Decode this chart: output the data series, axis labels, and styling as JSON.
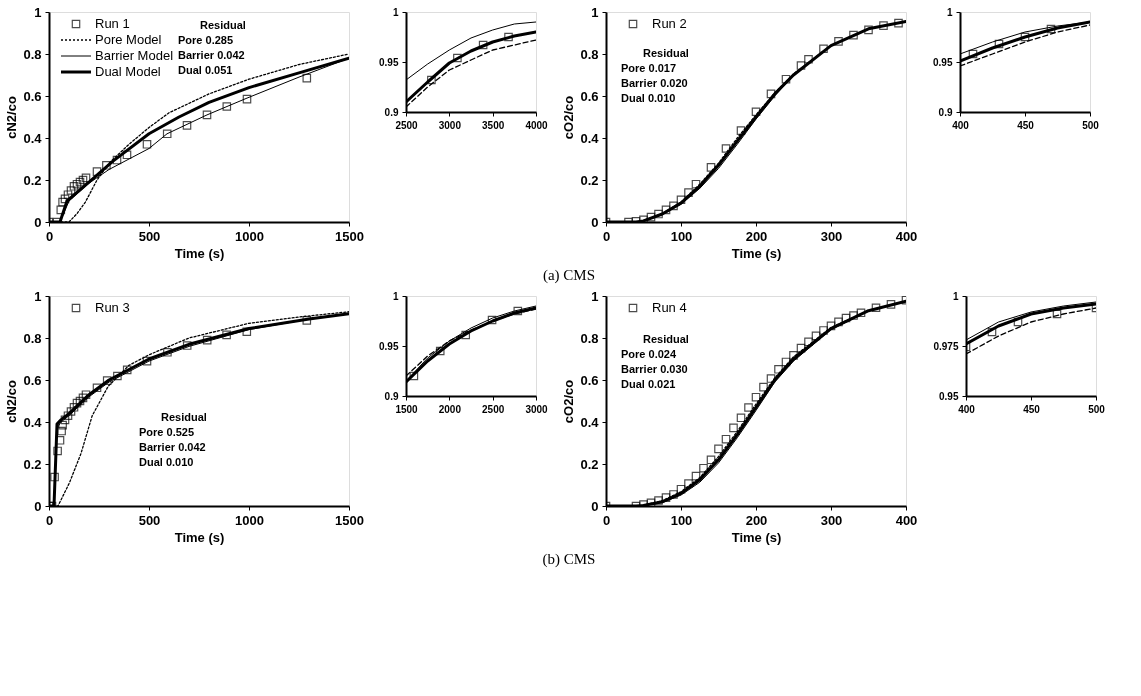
{
  "chart_data": [
    {
      "type": "line",
      "xlabel": "Time (s)",
      "ylabel": "cN2/co",
      "xlim": [
        0,
        1500
      ],
      "ylim": [
        0,
        1
      ],
      "xticks": [
        0,
        500,
        1000,
        1500
      ],
      "yticks": [
        0,
        0.2,
        0.4,
        0.6,
        0.8,
        1
      ],
      "legend": "top left",
      "grid": false,
      "annotations": [
        "Residual",
        "Pore 0.285",
        "Barrier 0.042",
        "Dual 0.051"
      ],
      "series": [
        {
          "name": "Run 1",
          "type": "scatter",
          "marker": "square",
          "color": "#000000",
          "x": [
            0,
            40,
            59,
            68,
            80,
            95,
            110,
            125,
            140,
            155,
            170,
            185,
            240,
            287,
            340,
            390,
            490,
            591,
            690,
            790,
            889,
            990,
            1289
          ],
          "values": [
            0,
            0,
            0.058,
            0.095,
            0.11,
            0.13,
            0.15,
            0.17,
            0.18,
            0.19,
            0.2,
            0.21,
            0.24,
            0.27,
            0.295,
            0.32,
            0.37,
            0.42,
            0.46,
            0.51,
            0.55,
            0.585,
            0.685
          ]
        },
        {
          "name": "Pore Model",
          "type": "line",
          "line_style": "dotted",
          "color": "#000000",
          "x": [
            0,
            100,
            140,
            182,
            240,
            300,
            400,
            500,
            600,
            800,
            1000,
            1250,
            1500
          ],
          "values": [
            0,
            0,
            0.04,
            0.095,
            0.2,
            0.28,
            0.37,
            0.45,
            0.52,
            0.61,
            0.68,
            0.75,
            0.8
          ]
        },
        {
          "name": "Barrier Model",
          "type": "line",
          "line_style": "solid",
          "color": "#000000",
          "x": [
            0,
            55,
            100,
            200,
            300,
            400,
            500,
            590,
            790,
            990,
            1250,
            1500
          ],
          "values": [
            0,
            0,
            0.1,
            0.185,
            0.25,
            0.3,
            0.35,
            0.42,
            0.51,
            0.59,
            0.69,
            0.78
          ]
        },
        {
          "name": "Dual Model",
          "type": "line",
          "line_style": "solid",
          "color": "#000000",
          "x": [
            0,
            55,
            90,
            200,
            320,
            500,
            650,
            800,
            1000,
            1250,
            1500
          ],
          "values": [
            0,
            0,
            0.1,
            0.19,
            0.29,
            0.42,
            0.5,
            0.57,
            0.64,
            0.71,
            0.78
          ]
        }
      ]
    },
    {
      "type": "line",
      "xlim": [
        2500,
        4000
      ],
      "ylim": [
        0.9,
        1
      ],
      "xticks": [
        2500,
        3000,
        3500,
        4000
      ],
      "yticks": [
        0.9,
        0.95,
        1
      ],
      "grid": false,
      "series": [
        {
          "type": "scatter",
          "marker": "square",
          "color": "#000000",
          "x": [
            2793,
            3093,
            3390,
            3683
          ],
          "values": [
            0.932,
            0.954,
            0.967,
            0.975
          ]
        },
        {
          "type": "line",
          "line_style": "dashed",
          "color": "#000000",
          "x": [
            2500,
            2750,
            3000,
            3250,
            3500,
            3750,
            4000
          ],
          "values": [
            0.905,
            0.925,
            0.942,
            0.952,
            0.962,
            0.967,
            0.972
          ]
        },
        {
          "type": "line",
          "line_style": "solid",
          "color": "#000000",
          "x": [
            2500,
            2750,
            3000,
            3250,
            3500,
            3750,
            4000
          ],
          "values": [
            0.932,
            0.948,
            0.962,
            0.974,
            0.982,
            0.988,
            0.99
          ]
        },
        {
          "type": "line",
          "line_style": "solid",
          "color": "#000000",
          "x": [
            2500,
            2750,
            3000,
            3250,
            3500,
            3750,
            4000
          ],
          "values": [
            0.91,
            0.93,
            0.949,
            0.961,
            0.97,
            0.976,
            0.98
          ]
        }
      ]
    },
    {
      "type": "line",
      "xlabel": "Time (s)",
      "ylabel": "cO2/co",
      "xlim": [
        0,
        400
      ],
      "ylim": [
        0,
        1
      ],
      "xticks": [
        0,
        100,
        200,
        300,
        400
      ],
      "yticks": [
        0,
        0.2,
        0.4,
        0.6,
        0.8,
        1
      ],
      "legend": "top left",
      "grid": false,
      "annotations": [
        "Residual",
        "Pore 0.017",
        "Barrier 0.020",
        "Dual 0.010"
      ],
      "series": [
        {
          "name": "Run 2",
          "type": "scatter",
          "marker": "square",
          "color": "#000000",
          "x": [
            0,
            30,
            40,
            50,
            60,
            70,
            80,
            90,
            100,
            110,
            120,
            140,
            160,
            180,
            200,
            220,
            240,
            260,
            270,
            290,
            310,
            330,
            350,
            370,
            390
          ],
          "values": [
            0,
            0,
            0.003,
            0.01,
            0.023,
            0.038,
            0.058,
            0.077,
            0.106,
            0.14,
            0.18,
            0.26,
            0.35,
            0.435,
            0.525,
            0.61,
            0.68,
            0.745,
            0.775,
            0.825,
            0.86,
            0.89,
            0.915,
            0.935,
            0.947
          ]
        },
        {
          "type": "line",
          "line_style": "dotted",
          "color": "#000000",
          "x": [
            0,
            40,
            50,
            75,
            100,
            125,
            150,
            175,
            200,
            225,
            250,
            300,
            350,
            400
          ],
          "values": [
            0,
            0,
            0.006,
            0.04,
            0.095,
            0.18,
            0.28,
            0.4,
            0.51,
            0.615,
            0.705,
            0.84,
            0.92,
            0.955
          ]
        },
        {
          "type": "line",
          "line_style": "solid",
          "color": "#000000",
          "x": [
            0,
            40,
            50,
            75,
            100,
            125,
            150,
            175,
            200,
            225,
            250,
            300,
            350,
            400
          ],
          "values": [
            0,
            0,
            0.004,
            0.035,
            0.085,
            0.16,
            0.255,
            0.37,
            0.49,
            0.6,
            0.7,
            0.84,
            0.92,
            0.955
          ]
        },
        {
          "type": "line",
          "line_style": "solid",
          "color": "#000000",
          "x": [
            0,
            40,
            50,
            75,
            100,
            125,
            150,
            175,
            200,
            225,
            250,
            300,
            350,
            400
          ],
          "values": [
            0,
            0,
            0.005,
            0.038,
            0.09,
            0.17,
            0.27,
            0.385,
            0.5,
            0.61,
            0.7,
            0.84,
            0.92,
            0.955
          ]
        }
      ]
    },
    {
      "type": "line",
      "xlim": [
        400,
        500
      ],
      "ylim": [
        0.9,
        1
      ],
      "xticks": [
        400,
        450,
        500
      ],
      "yticks": [
        0.9,
        0.95,
        1
      ],
      "grid": false,
      "series": [
        {
          "type": "scatter",
          "marker": "square",
          "color": "#000000",
          "x": [
            410,
            430,
            450,
            470
          ],
          "values": [
            0.958,
            0.968,
            0.975,
            0.983
          ]
        },
        {
          "type": "line",
          "line_style": "dashed",
          "color": "#000000",
          "x": [
            400,
            425,
            450,
            475,
            500
          ],
          "values": [
            0.946,
            0.958,
            0.97,
            0.98,
            0.987
          ]
        },
        {
          "type": "line",
          "line_style": "solid",
          "color": "#000000",
          "x": [
            400,
            425,
            450,
            475,
            500
          ],
          "values": [
            0.958,
            0.97,
            0.98,
            0.986,
            0.99
          ]
        },
        {
          "type": "line",
          "line_style": "solid",
          "color": "#000000",
          "x": [
            400,
            425,
            450,
            475,
            500
          ],
          "values": [
            0.951,
            0.964,
            0.975,
            0.984,
            0.99
          ]
        }
      ]
    },
    {
      "type": "other",
      "title": "(a) CMS"
    },
    {
      "type": "line",
      "xlabel": "Time (s)",
      "ylabel": "cN2/co",
      "xlim": [
        0,
        1500
      ],
      "ylim": [
        0,
        1
      ],
      "xticks": [
        0,
        500,
        1000,
        1500
      ],
      "yticks": [
        0,
        0.2,
        0.4,
        0.6,
        0.8,
        1
      ],
      "legend": "top left",
      "grid": false,
      "annotations": [
        "Residual",
        "Pore 0.525",
        "Barrier 0.042",
        "Dual 0.010"
      ],
      "series": [
        {
          "name": "Run 3",
          "type": "scatter",
          "marker": "square",
          "color": "#000000",
          "x": [
            0,
            15,
            28,
            43,
            55,
            63,
            68,
            80,
            95,
            110,
            125,
            140,
            155,
            170,
            185,
            240,
            291,
            342,
            391,
            490,
            592,
            691,
            791,
            888,
            989,
            1289
          ],
          "values": [
            0,
            0,
            0.138,
            0.262,
            0.313,
            0.357,
            0.385,
            0.41,
            0.43,
            0.45,
            0.47,
            0.49,
            0.5,
            0.515,
            0.53,
            0.563,
            0.597,
            0.619,
            0.648,
            0.69,
            0.732,
            0.764,
            0.79,
            0.815,
            0.83,
            0.884
          ]
        },
        {
          "type": "line",
          "line_style": "dotted",
          "color": "#000000",
          "x": [
            0,
            45,
            102,
            160,
            216,
            296,
            400,
            500,
            700,
            1000,
            1250,
            1500
          ],
          "values": [
            0,
            0,
            0.11,
            0.25,
            0.43,
            0.57,
            0.67,
            0.72,
            0.8,
            0.87,
            0.9,
            0.925
          ]
        },
        {
          "type": "line",
          "line_style": "solid",
          "color": "#000000",
          "x": [
            0,
            25,
            40,
            60,
            100,
            200,
            300,
            500,
            700,
            1000,
            1300,
            1500
          ],
          "values": [
            0,
            0,
            0.37,
            0.4,
            0.43,
            0.52,
            0.59,
            0.69,
            0.76,
            0.84,
            0.89,
            0.915
          ]
        },
        {
          "type": "line",
          "line_style": "solid",
          "color": "#000000",
          "x": [
            0,
            25,
            40,
            60,
            100,
            200,
            300,
            500,
            700,
            1000,
            1300,
            1500
          ],
          "values": [
            0,
            0,
            0.39,
            0.41,
            0.44,
            0.53,
            0.6,
            0.7,
            0.77,
            0.845,
            0.89,
            0.915
          ]
        }
      ]
    },
    {
      "type": "line",
      "xlim": [
        1500,
        3000
      ],
      "ylim": [
        0.9,
        1
      ],
      "xticks": [
        1500,
        2000,
        2500,
        3000
      ],
      "yticks": [
        0.9,
        0.95,
        1
      ],
      "grid": false,
      "series": [
        {
          "type": "scatter",
          "marker": "square",
          "color": "#000000",
          "x": [
            1591,
            1895,
            2189,
            2493,
            2790
          ],
          "values": [
            0.92,
            0.945,
            0.961,
            0.976,
            0.985
          ]
        },
        {
          "type": "line",
          "line_style": "dashed",
          "color": "#000000",
          "x": [
            1500,
            1750,
            2000,
            2250,
            2500,
            2750,
            3000
          ],
          "values": [
            0.92,
            0.94,
            0.955,
            0.966,
            0.975,
            0.982,
            0.987
          ]
        },
        {
          "type": "line",
          "line_style": "solid",
          "color": "#000000",
          "x": [
            1500,
            1750,
            2000,
            2250,
            2500,
            2750,
            3000
          ],
          "values": [
            0.915,
            0.938,
            0.955,
            0.968,
            0.978,
            0.985,
            0.99
          ]
        },
        {
          "type": "line",
          "line_style": "solid",
          "color": "#000000",
          "x": [
            1500,
            1750,
            2000,
            2250,
            2500,
            2750,
            3000
          ],
          "values": [
            0.914,
            0.935,
            0.952,
            0.965,
            0.975,
            0.983,
            0.988
          ]
        }
      ]
    },
    {
      "type": "line",
      "xlabel": "Time (s)",
      "ylabel": "cO2/co",
      "xlim": [
        0,
        400
      ],
      "ylim": [
        0,
        1
      ],
      "xticks": [
        0,
        100,
        200,
        300,
        400
      ],
      "yticks": [
        0,
        0.2,
        0.4,
        0.6,
        0.8,
        1
      ],
      "legend": "top left",
      "grid": false,
      "annotations": [
        "Residual",
        "Pore 0.024",
        "Barrier 0.030",
        "Dual 0.021"
      ],
      "series": [
        {
          "name": "Run 4",
          "type": "scatter",
          "marker": "square",
          "color": "#000000",
          "x": [
            0,
            40,
            50,
            60,
            70,
            80,
            90,
            100,
            110,
            120,
            130,
            140,
            150,
            160,
            170,
            180,
            190,
            200,
            210,
            220,
            230,
            240,
            250,
            260,
            270,
            280,
            290,
            300,
            310,
            320,
            330,
            340,
            360,
            380,
            400
          ],
          "values": [
            0,
            0,
            0.007,
            0.015,
            0.026,
            0.04,
            0.055,
            0.08,
            0.107,
            0.142,
            0.18,
            0.22,
            0.272,
            0.318,
            0.372,
            0.42,
            0.469,
            0.518,
            0.566,
            0.607,
            0.651,
            0.686,
            0.717,
            0.752,
            0.782,
            0.81,
            0.836,
            0.858,
            0.877,
            0.895,
            0.907,
            0.92,
            0.944,
            0.96,
            0.98
          ]
        },
        {
          "type": "line",
          "line_style": "dotted",
          "color": "#000000",
          "x": [
            0,
            40,
            50,
            75,
            100,
            125,
            150,
            175,
            200,
            225,
            250,
            300,
            350,
            400
          ],
          "values": [
            0,
            0,
            0.004,
            0.025,
            0.068,
            0.135,
            0.235,
            0.355,
            0.485,
            0.61,
            0.71,
            0.85,
            0.93,
            0.975
          ]
        },
        {
          "type": "line",
          "line_style": "solid",
          "color": "#000000",
          "x": [
            0,
            40,
            50,
            75,
            100,
            125,
            150,
            175,
            200,
            225,
            250,
            300,
            350,
            400
          ],
          "values": [
            0,
            0,
            0.002,
            0.016,
            0.052,
            0.113,
            0.205,
            0.325,
            0.455,
            0.59,
            0.69,
            0.84,
            0.928,
            0.975
          ]
        },
        {
          "type": "line",
          "line_style": "solid",
          "color": "#000000",
          "x": [
            0,
            40,
            50,
            75,
            100,
            125,
            150,
            175,
            200,
            225,
            250,
            300,
            350,
            400
          ],
          "values": [
            0,
            0,
            0.003,
            0.02,
            0.06,
            0.125,
            0.22,
            0.34,
            0.47,
            0.6,
            0.7,
            0.845,
            0.93,
            0.975
          ]
        }
      ]
    },
    {
      "type": "line",
      "xlim": [
        400,
        500
      ],
      "ylim": [
        0.95,
        1
      ],
      "xticks": [
        400,
        450,
        500
      ],
      "yticks": [
        0.95,
        0.975,
        1
      ],
      "grid": false,
      "series": [
        {
          "type": "scatter",
          "marker": "square",
          "color": "#000000",
          "x": [
            400,
            420,
            440,
            470,
            500
          ],
          "values": [
            0.9746,
            0.982,
            0.987,
            0.991,
            0.994
          ]
        },
        {
          "type": "line",
          "line_style": "dashed",
          "color": "#000000",
          "x": [
            400,
            425,
            450,
            475,
            500
          ],
          "values": [
            0.971,
            0.98,
            0.987,
            0.991,
            0.994
          ]
        },
        {
          "type": "line",
          "line_style": "solid",
          "color": "#000000",
          "x": [
            400,
            425,
            450,
            475,
            500
          ],
          "values": [
            0.978,
            0.987,
            0.992,
            0.995,
            0.997
          ]
        },
        {
          "type": "line",
          "line_style": "solid",
          "color": "#000000",
          "x": [
            400,
            425,
            450,
            475,
            500
          ],
          "values": [
            0.976,
            0.985,
            0.991,
            0.994,
            0.996
          ]
        }
      ]
    },
    {
      "type": "other",
      "title": "(b) CMS"
    }
  ]
}
